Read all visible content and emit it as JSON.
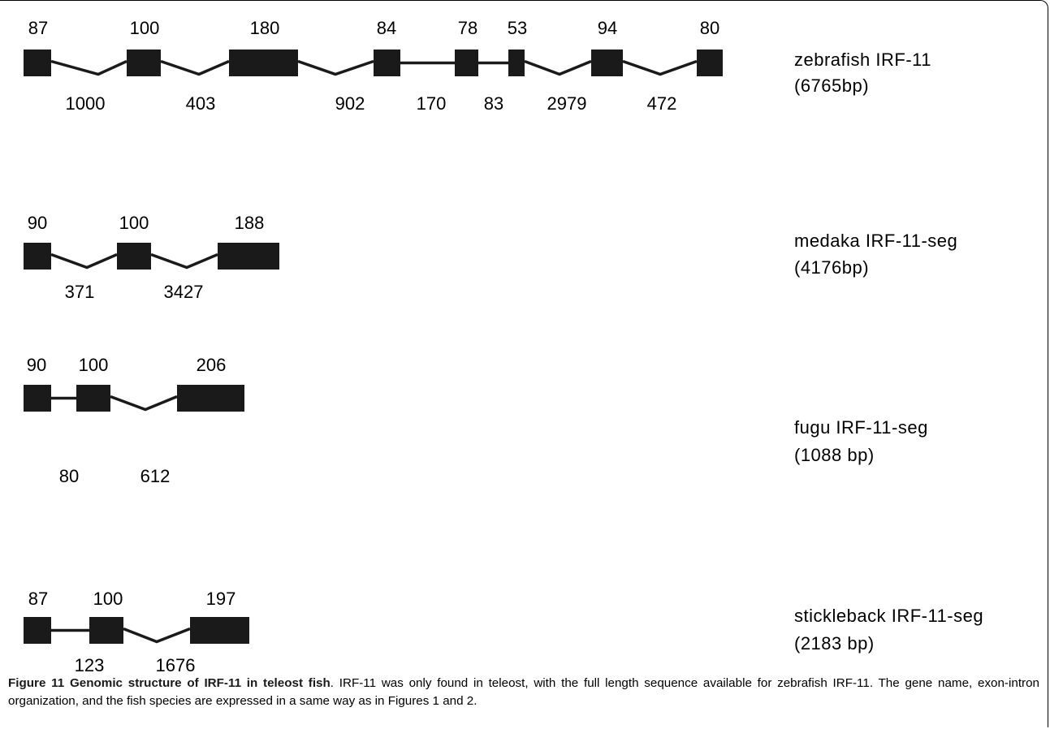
{
  "genes": [
    {
      "name": "zebrafish IRF-11",
      "length": "(6765bp)",
      "exons": [
        "87",
        "100",
        "180",
        "84",
        "78",
        "53",
        "94",
        "80"
      ],
      "introns": [
        "1000",
        "403",
        "902",
        "170",
        "83",
        "2979",
        "472"
      ]
    },
    {
      "name": "medaka IRF-11-seg",
      "length": "(4176bp)",
      "exons": [
        "90",
        "100",
        "188"
      ],
      "introns": [
        "371",
        "3427"
      ]
    },
    {
      "name": "fugu IRF-11-seg",
      "length": "(1088 bp)",
      "exons": [
        "90",
        "100",
        "206"
      ],
      "introns": [
        "80",
        "612"
      ]
    },
    {
      "name": "stickleback IRF-11-seg",
      "length": "(2183 bp)",
      "exons": [
        "87",
        "100",
        "197"
      ],
      "introns": [
        "123",
        "1676"
      ]
    }
  ],
  "caption": {
    "title": "Figure 11 Genomic structure of IRF-11 in teleost fish",
    "text": ". IRF-11 was only found in teleost, with the full length sequence available for zebrafish IRF-11. The gene name, exon-intron organization, and the fish species are expressed in a same way as in Figures 1 and 2."
  },
  "colors": {
    "exon": "#1a1a1a",
    "line": "#1a1a1a"
  }
}
